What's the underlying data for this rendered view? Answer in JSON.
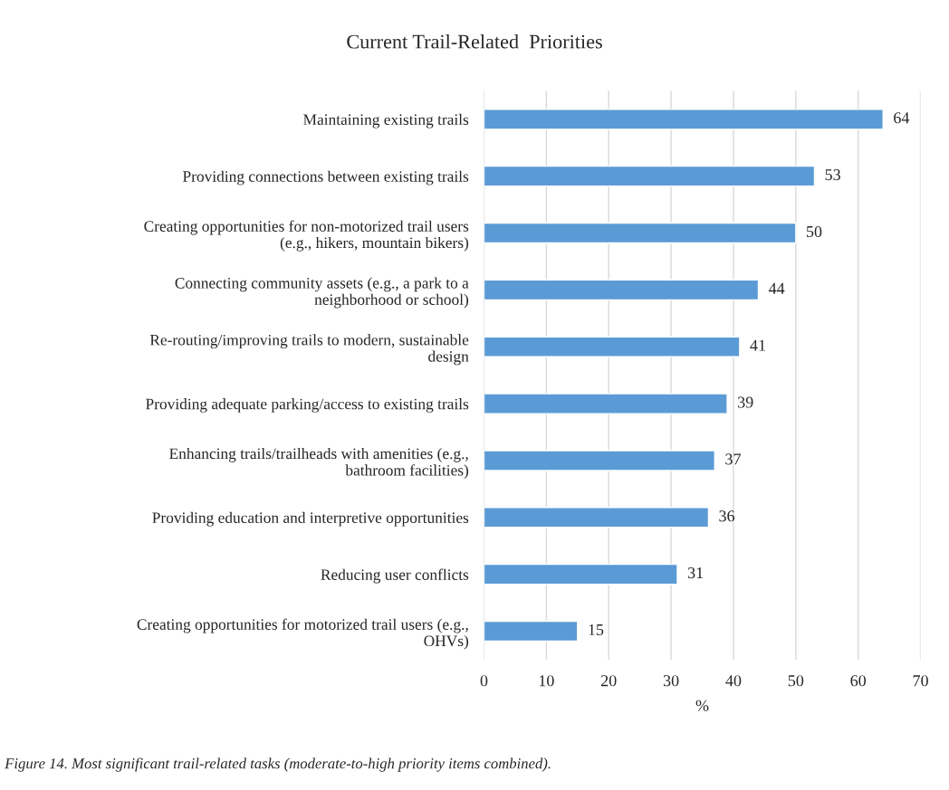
{
  "chart_data": {
    "type": "bar",
    "orientation": "horizontal",
    "title": "Current Trail-Related  Priorities",
    "categories": [
      "Maintaining existing trails",
      "Providing connections between existing trails",
      "Creating opportunities for non-motorized trail users\n(e.g., hikers, mountain bikers)",
      "Connecting community assets (e.g., a park to a\nneighborhood or school)",
      "Re-routing/improving trails to modern, sustainable\ndesign",
      "Providing adequate parking/access to existing trails",
      "Enhancing trails/trailheads with amenities (e.g.,\nbathroom facilities)",
      "Providing education and interpretive opportunities",
      "Reducing user conflicts",
      "Creating opportunities for motorized trail users (e.g.,\nOHVs)"
    ],
    "values": [
      64,
      53,
      50,
      44,
      41,
      39,
      37,
      36,
      31,
      15
    ],
    "color": "#5b9bd5",
    "xlim": [
      0,
      70
    ],
    "xticks": [
      0,
      10,
      20,
      30,
      40,
      50,
      60,
      70
    ],
    "xlabel": "%",
    "grid": "x",
    "data_labels": true,
    "annotations": [
      "Figure 14. Most significant trail-related tasks (moderate-to-high priority items combined)."
    ]
  }
}
